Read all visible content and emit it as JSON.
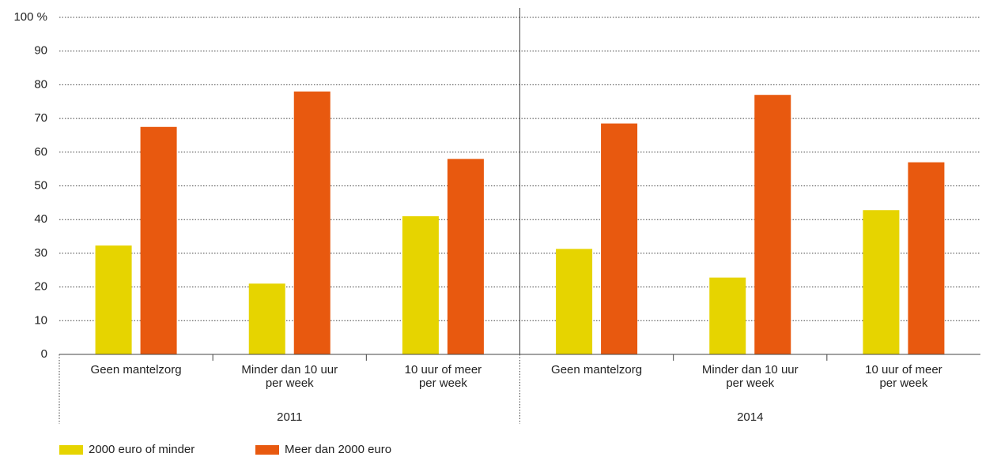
{
  "chart_data": {
    "type": "bar",
    "groups": [
      {
        "name": "2011",
        "categories": [
          [
            "Geen mantelzorg"
          ],
          [
            "Minder dan 10 uur",
            "per week"
          ],
          [
            "10 uur of meer",
            "per week"
          ]
        ]
      },
      {
        "name": "2014",
        "categories": [
          [
            "Geen mantelzorg"
          ],
          [
            "Minder dan 10 uur",
            "per week"
          ],
          [
            "10 uur of meer",
            "per week"
          ]
        ]
      }
    ],
    "series": [
      {
        "name": "2000 euro of minder",
        "color": "#e6d400",
        "values": [
          32.3,
          21,
          41,
          31.3,
          22.8,
          42.8
        ]
      },
      {
        "name": "Meer dan 2000 euro",
        "color": "#e8590f",
        "values": [
          67.5,
          78,
          58,
          68.5,
          77,
          57
        ]
      }
    ],
    "ylim": [
      0,
      100
    ],
    "yticks": [
      0,
      10,
      20,
      30,
      40,
      50,
      60,
      70,
      80,
      90,
      {
        "value": 100,
        "label": "100 %"
      }
    ],
    "grid": true,
    "legend": "bottom"
  }
}
